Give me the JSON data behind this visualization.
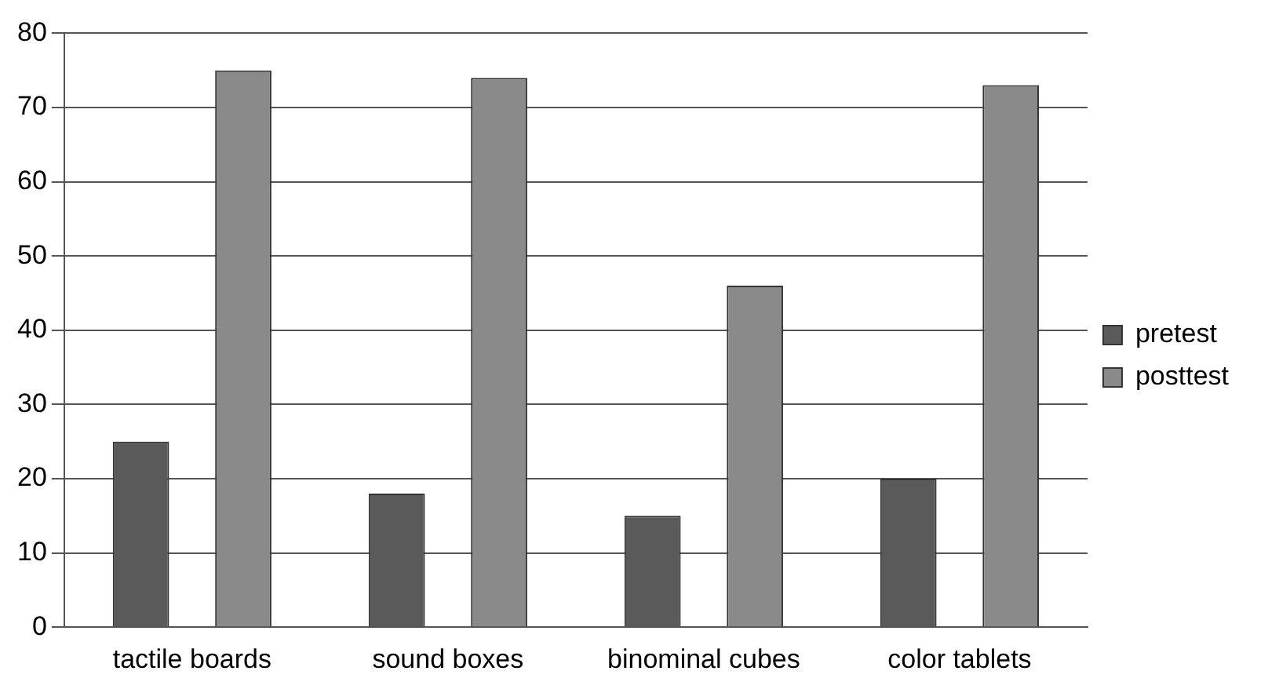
{
  "chart_data": {
    "type": "bar",
    "categories": [
      "tactile boards",
      "sound boxes",
      "binominal cubes",
      "color tablets"
    ],
    "series": [
      {
        "name": "pretest",
        "color": "#5a5a5a",
        "values": [
          25,
          18,
          15,
          20
        ]
      },
      {
        "name": "posttest",
        "color": "#8a8a8a",
        "values": [
          75,
          74,
          46,
          73
        ]
      }
    ],
    "ylim": [
      0,
      80
    ],
    "yticks": [
      0,
      10,
      20,
      30,
      40,
      50,
      60,
      70,
      80
    ],
    "grid": "y",
    "legend": "right"
  }
}
